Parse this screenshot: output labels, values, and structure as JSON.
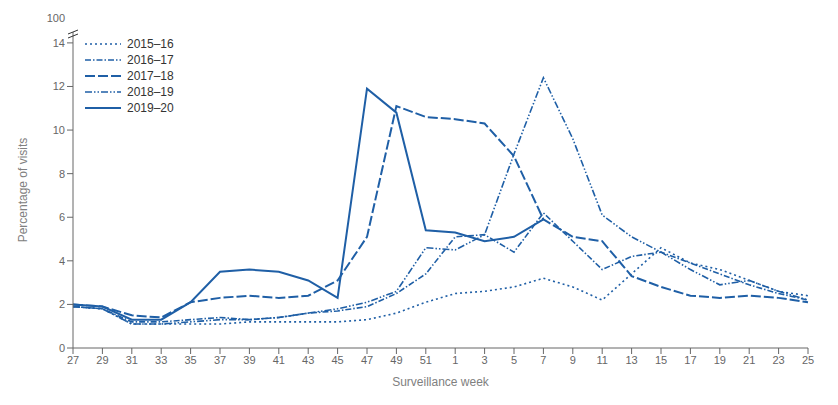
{
  "chart_data": {
    "type": "line",
    "xlabel": "Surveillance week",
    "ylabel": "Percentage of visits",
    "categories": [
      "27",
      "29",
      "31",
      "33",
      "35",
      "37",
      "39",
      "41",
      "43",
      "45",
      "47",
      "49",
      "51",
      "1",
      "3",
      "5",
      "7",
      "9",
      "11",
      "13",
      "15",
      "17",
      "19",
      "21",
      "23",
      "25"
    ],
    "series": [
      {
        "name": "2015–16",
        "color": "#1f5fa6",
        "line_style": "dotted",
        "values": [
          1.9,
          1.8,
          1.1,
          1.1,
          1.1,
          1.1,
          1.2,
          1.2,
          1.2,
          1.2,
          1.3,
          1.6,
          2.1,
          2.5,
          2.6,
          2.8,
          3.2,
          2.8,
          2.2,
          3.4,
          4.6,
          3.9,
          3.6,
          3.1,
          2.6,
          2.4
        ]
      },
      {
        "name": "2016–17",
        "color": "#1f5fa6",
        "line_style": "dashdot",
        "values": [
          1.9,
          1.8,
          1.2,
          1.2,
          1.3,
          1.4,
          1.3,
          1.4,
          1.6,
          1.7,
          1.9,
          2.5,
          3.4,
          5.1,
          5.2,
          4.4,
          6.2,
          4.9,
          3.6,
          4.2,
          4.4,
          3.9,
          3.4,
          2.9,
          2.5,
          2.2
        ]
      },
      {
        "name": "2017–18",
        "color": "#1f5fa6",
        "line_style": "dashed",
        "values": [
          2.0,
          1.9,
          1.5,
          1.4,
          2.1,
          2.3,
          2.4,
          2.3,
          2.4,
          3.1,
          5.1,
          11.1,
          10.6,
          10.5,
          10.3,
          8.8,
          5.9,
          5.1,
          4.9,
          3.3,
          2.8,
          2.4,
          2.3,
          2.4,
          2.3,
          2.1
        ]
      },
      {
        "name": "2018–19",
        "color": "#1f5fa6",
        "line_style": "dashdotdot",
        "values": [
          1.9,
          1.8,
          1.1,
          1.1,
          1.2,
          1.3,
          1.3,
          1.4,
          1.6,
          1.8,
          2.1,
          2.6,
          4.6,
          4.5,
          5.2,
          8.9,
          12.4,
          9.6,
          6.1,
          5.1,
          4.4,
          3.6,
          2.9,
          3.1,
          2.6,
          2.2
        ]
      },
      {
        "name": "2019–20",
        "color": "#1f5fa6",
        "line_style": "solid",
        "values": [
          2.0,
          1.9,
          1.3,
          1.3,
          2.1,
          3.5,
          3.6,
          3.5,
          3.1,
          2.3,
          11.9,
          10.8,
          5.4,
          5.3,
          4.9,
          5.1,
          5.9,
          null,
          null,
          null,
          null,
          null,
          null,
          null,
          null,
          null
        ]
      }
    ],
    "ylim": [
      0,
      14.5
    ],
    "yticks": [
      0,
      2,
      4,
      6,
      8,
      10,
      12,
      14
    ],
    "annotations": [
      "100"
    ],
    "legend": "upper left",
    "grid": false
  }
}
